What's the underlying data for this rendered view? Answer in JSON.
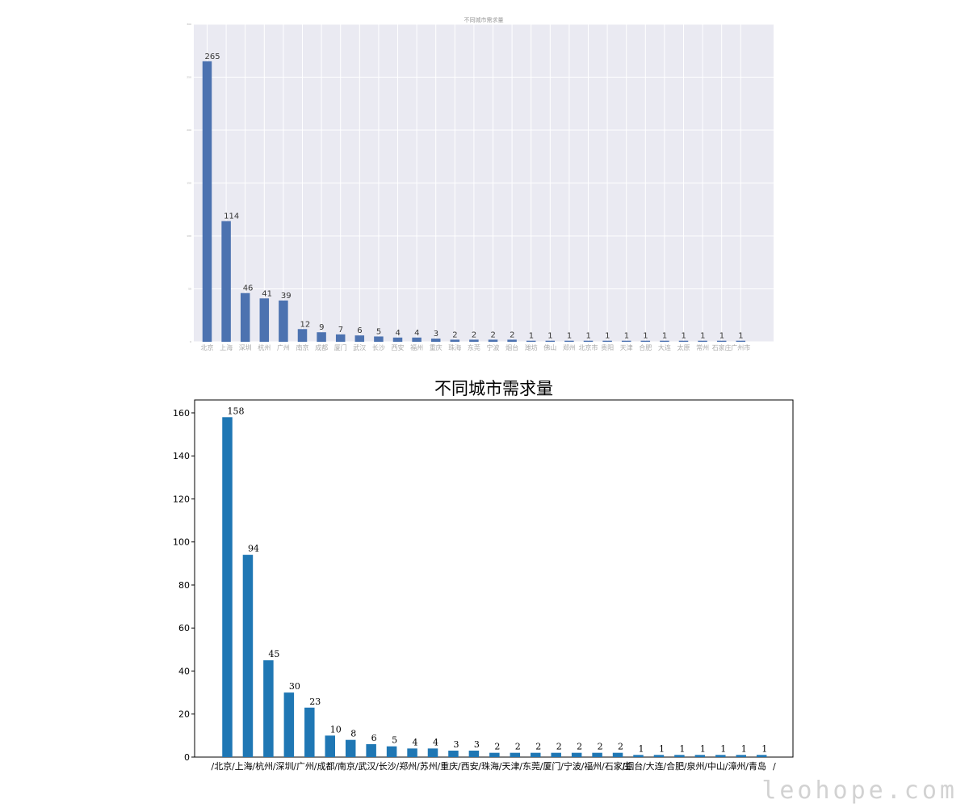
{
  "watermark": "leohope.com",
  "chart_data": [
    {
      "type": "bar",
      "style": "seaborn-darkgrid",
      "title": "不同城市需求量",
      "xlabel": "",
      "ylabel": "",
      "grid": true,
      "bar_color": "#4c72b0",
      "plot_bg": "#eaeaf2",
      "ylim": [
        0,
        300
      ],
      "yticks": [
        0,
        50,
        100,
        150,
        200,
        250,
        300
      ],
      "categories": [
        "北京",
        "上海",
        "深圳",
        "杭州",
        "广州",
        "南京",
        "成都",
        "厦门",
        "武汉",
        "长沙",
        "西安",
        "福州",
        "重庆",
        "珠海",
        "东莞",
        "宁波",
        "烟台",
        "潍坊",
        "佛山",
        "郑州",
        "北京市",
        "贵阳",
        "天津",
        "合肥",
        "大连",
        "太原",
        "常州",
        "石家庄",
        "广州市"
      ],
      "values": [
        265,
        114,
        46,
        41,
        39,
        12,
        9,
        7,
        6,
        5,
        4,
        4,
        3,
        2,
        2,
        2,
        2,
        1,
        1,
        1,
        1,
        1,
        1,
        1,
        1,
        1,
        1,
        1,
        1
      ]
    },
    {
      "type": "bar",
      "style": "classic",
      "title": "不同城市需求量",
      "xlabel": "",
      "ylabel": "",
      "grid": false,
      "bar_color": "#1f77b4",
      "plot_bg": "#ffffff",
      "ylim": [
        0,
        166
      ],
      "yticks": [
        0,
        20,
        40,
        60,
        80,
        100,
        120,
        140,
        160
      ],
      "categories": [
        "/北京",
        "/上海",
        "/杭州",
        "/深圳",
        "/广州",
        "/成都",
        "/南京",
        "/武汉",
        "/长沙",
        "/郑州",
        "/苏州",
        "/重庆",
        "/西安",
        "/珠海",
        "/天津",
        "/东莞",
        "/厦门",
        "/宁波",
        "/福州",
        "/石家庄",
        "/烟台",
        "/大连",
        "/合肥",
        "/泉州",
        "/中山",
        "/漳州",
        "/青岛"
      ],
      "values": [
        158,
        94,
        45,
        30,
        23,
        10,
        8,
        6,
        5,
        4,
        4,
        3,
        3,
        2,
        2,
        2,
        2,
        2,
        2,
        2,
        1,
        1,
        1,
        1,
        1,
        1,
        1
      ],
      "trailing_label": "/"
    }
  ]
}
